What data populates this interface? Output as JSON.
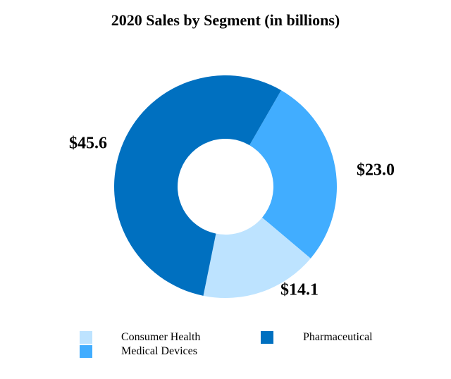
{
  "chart_data": {
    "type": "pie",
    "donut": true,
    "title": "2020 Sales by Segment (in billions)",
    "categories": [
      "Pharmaceutical",
      "Medical Devices",
      "Consumer Health"
    ],
    "values": [
      45.6,
      23.0,
      14.1
    ],
    "data_labels": [
      "$45.6",
      "$23.0",
      "$14.1"
    ],
    "colors": {
      "Pharmaceutical": "#0070C0",
      "Medical Devices": "#41ADFF",
      "Consumer Health": "#BDE3FF"
    },
    "legend": {
      "placement": "bottom",
      "entries": [
        "Consumer Health",
        "Pharmaceutical",
        "Medical Devices"
      ]
    }
  }
}
